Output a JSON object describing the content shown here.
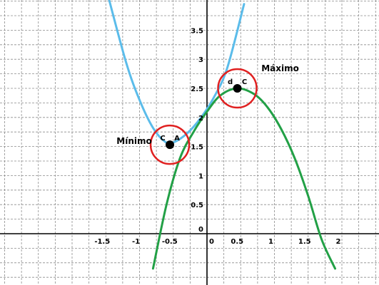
{
  "chart_data": {
    "type": "line",
    "title": "",
    "xlabel": "",
    "ylabel": "",
    "xlim": [
      -3,
      2.5
    ],
    "ylim": [
      -0.5,
      4.2
    ],
    "grid": true,
    "x_ticks": [
      {
        "value": -1.5,
        "label": "-1.5"
      },
      {
        "value": -1,
        "label": "-1"
      },
      {
        "value": -0.5,
        "label": "-0.5"
      },
      {
        "value": 0,
        "label": "0"
      },
      {
        "value": 0.5,
        "label": "0.5"
      },
      {
        "value": 1,
        "label": "1"
      },
      {
        "value": 1.5,
        "label": "1.5"
      },
      {
        "value": 2,
        "label": "2"
      }
    ],
    "y_ticks": [
      {
        "value": 0,
        "label": "0"
      },
      {
        "value": 0.5,
        "label": "0.5"
      },
      {
        "value": 1,
        "label": "1"
      },
      {
        "value": 1.5,
        "label": "1.5"
      },
      {
        "value": 2,
        "label": "2"
      },
      {
        "value": 2.5,
        "label": "2.5"
      },
      {
        "value": 3,
        "label": "3"
      },
      {
        "value": 3.5,
        "label": "3.5"
      }
    ],
    "series": [
      {
        "color": "#5bbcea",
        "x": [
          -1.48,
          -1.2,
          -1.0,
          -0.8,
          -0.62,
          -0.5,
          -0.3,
          -0.1,
          0.1,
          0.3,
          0.55
        ],
        "y": [
          4.15,
          2.95,
          2.3,
          1.82,
          1.58,
          1.57,
          1.72,
          1.98,
          2.34,
          2.85,
          3.95
        ]
      },
      {
        "color": "#22a046",
        "x": [
          -0.8,
          -0.6,
          -0.4,
          -0.2,
          0.0,
          0.2,
          0.45,
          0.7,
          0.9,
          1.1,
          1.3,
          1.5,
          1.7,
          1.9
        ],
        "y": [
          -0.6,
          0.5,
          1.3,
          1.75,
          2.1,
          2.38,
          2.5,
          2.4,
          2.17,
          1.8,
          1.3,
          0.65,
          -0.1,
          -0.6
        ]
      }
    ],
    "annotations": [
      {
        "name": "minimum",
        "text": "Mínimo",
        "point": [
          -0.55,
          1.53
        ],
        "point_labels": [
          "C",
          "A"
        ]
      },
      {
        "name": "maximum",
        "text": "Máximo",
        "point": [
          0.45,
          2.5
        ],
        "point_labels": [
          "d",
          "C"
        ]
      }
    ],
    "colors": {
      "highlight_circle": "#e02020",
      "grid": "#8c8c8c",
      "axis": "#000000",
      "point": "#000000"
    }
  }
}
